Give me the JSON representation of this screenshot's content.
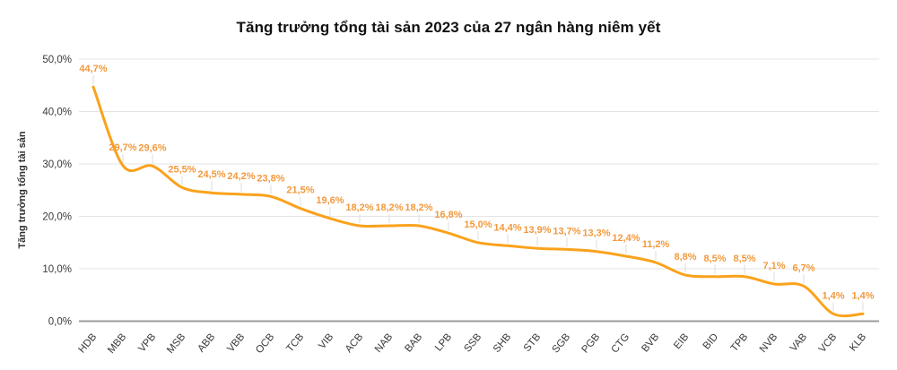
{
  "chart_data": {
    "type": "line",
    "title": "Tăng trưởng tổng tài sản 2023 của 27 ngân hàng niêm yết",
    "xlabel": "",
    "ylabel": "Tăng trưởng tổng tài sản",
    "categories": [
      "HDB",
      "MBB",
      "VPB",
      "MSB",
      "ABB",
      "VBB",
      "OCB",
      "TCB",
      "VIB",
      "ACB",
      "NAB",
      "BAB",
      "LPB",
      "SSB",
      "SHB",
      "STB",
      "SGB",
      "PGB",
      "CTG",
      "BVB",
      "EIB",
      "BID",
      "TPB",
      "NVB",
      "VAB",
      "VCB",
      "KLB"
    ],
    "values": [
      44.7,
      29.7,
      29.6,
      25.5,
      24.5,
      24.2,
      23.8,
      21.5,
      19.6,
      18.2,
      18.2,
      18.2,
      16.8,
      15.0,
      14.4,
      13.9,
      13.7,
      13.3,
      12.4,
      11.2,
      8.8,
      8.5,
      8.5,
      7.1,
      6.7,
      1.4,
      1.4
    ],
    "point_labels": [
      "44,7%",
      "29,7%",
      "29,6%",
      "25,5%",
      "24,5%",
      "24,2%",
      "23,8%",
      "21,5%",
      "19,6%",
      "18,2%",
      "18,2%",
      "18,2%",
      "16,8%",
      "15,0%",
      "14,4%",
      "13,9%",
      "13,7%",
      "13,3%",
      "12,4%",
      "11,2%",
      "8,8%",
      "8,5%",
      "8,5%",
      "7,1%",
      "6,7%",
      "1,4%",
      "1,4%"
    ],
    "ylim": [
      0,
      50
    ],
    "yticks": [
      0,
      10,
      20,
      30,
      40,
      50
    ],
    "ytick_labels": [
      "0,0%",
      "10,0%",
      "20,0%",
      "30,0%",
      "40,0%",
      "50,0%"
    ],
    "grid": true,
    "legend": "none",
    "smooth": true,
    "line_color": "#FAA21C",
    "label_color": "#F2993D",
    "grid_color": "#e4e4e4",
    "axis_line_color": "#9b9b9b",
    "axis_text_color": "#3a3a3a",
    "leader_line_color": "#dcdcdc"
  }
}
